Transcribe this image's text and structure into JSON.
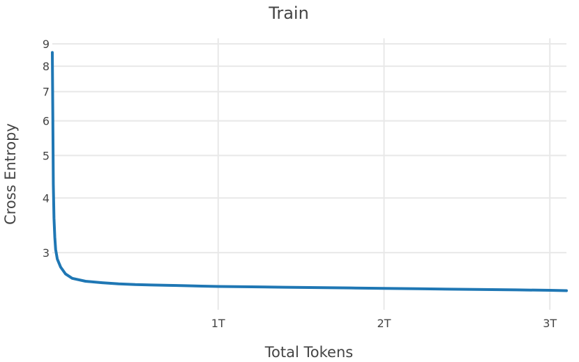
{
  "chart_data": {
    "type": "line",
    "title": "Train",
    "xlabel": "Total Tokens",
    "ylabel": "Cross Entropy",
    "yscale": "log",
    "grid": true,
    "legend": "none",
    "xlim": [
      0,
      3.1
    ],
    "ylim": [
      2.22,
      9.1
    ],
    "x_ticks": [
      {
        "value": 1,
        "label": "1T"
      },
      {
        "value": 2,
        "label": "2T"
      },
      {
        "value": 3,
        "label": "3T"
      }
    ],
    "y_ticks": [
      {
        "value": 3,
        "label": "3"
      },
      {
        "value": 4,
        "label": "4"
      },
      {
        "value": 5,
        "label": "5"
      },
      {
        "value": 6,
        "label": "6"
      },
      {
        "value": 7,
        "label": "7"
      },
      {
        "value": 8,
        "label": "8"
      },
      {
        "value": 9,
        "label": "9"
      }
    ],
    "series": [
      {
        "color": "#1f77b4",
        "x": [
          0.0,
          0.003,
          0.006,
          0.01,
          0.015,
          0.02,
          0.03,
          0.05,
          0.08,
          0.12,
          0.2,
          0.3,
          0.4,
          0.5,
          0.6,
          0.7,
          0.8,
          0.9,
          1.0,
          1.2,
          1.4,
          1.6,
          1.8,
          2.0,
          2.2,
          2.4,
          2.6,
          2.8,
          3.0,
          3.1
        ],
        "y": [
          8.6,
          6.2,
          4.3,
          3.6,
          3.25,
          3.05,
          2.9,
          2.78,
          2.68,
          2.62,
          2.58,
          2.56,
          2.545,
          2.535,
          2.53,
          2.525,
          2.52,
          2.515,
          2.51,
          2.505,
          2.5,
          2.495,
          2.49,
          2.485,
          2.48,
          2.475,
          2.47,
          2.465,
          2.46,
          2.455
        ]
      }
    ]
  }
}
